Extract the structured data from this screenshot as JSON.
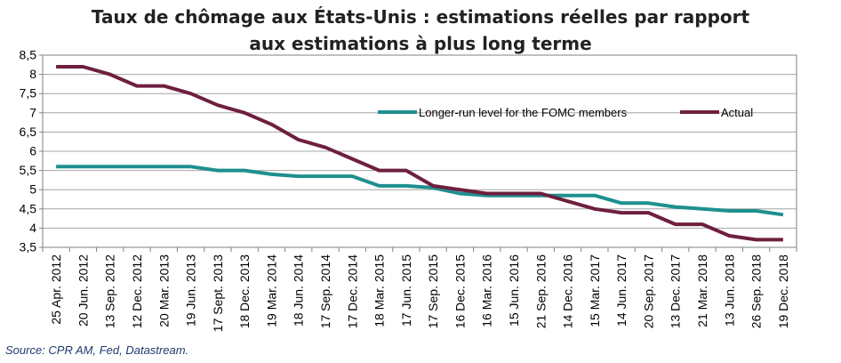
{
  "chart_data": {
    "type": "line",
    "title_lines": [
      "Taux de chômage aux États-Unis : estimations réelles par rapport",
      "aux estimations à plus long terme"
    ],
    "x": [
      "25 Apr. 2012",
      "20 Jun. 2012",
      "13 Sep. 2012",
      "12 Dec. 2012",
      "20 Mar. 2013",
      "19 Jun. 2013",
      "17 Sept. 2013",
      "18 Dec. 2013",
      "19 Mar. 2014",
      "18 Jun. 2014",
      "17 Sep. 2014",
      "17 Dec. 2014",
      "18 Mar. 2015",
      "17 Jun. 2015",
      "17 Sep. 2015",
      "16 Dec. 2015",
      "16 Mar. 2016",
      "15 Jun. 2016",
      "21 Sep. 2016",
      "14 Dec. 2016",
      "15 Mar. 2017",
      "14 Jun. 2017",
      "20 Sep. 2017",
      "13 Dec. 2017",
      "21 Mar. 2018",
      "13 Jun. 2018",
      "26 Sep. 2018",
      "19 Dec. 2018"
    ],
    "series": [
      {
        "name": "Longer-run level for the FOMC members",
        "color": "#1f8f8f",
        "values": [
          5.6,
          5.6,
          5.6,
          5.6,
          5.6,
          5.6,
          5.5,
          5.5,
          5.4,
          5.35,
          5.35,
          5.35,
          5.1,
          5.1,
          5.05,
          4.9,
          4.85,
          4.85,
          4.85,
          4.85,
          4.85,
          4.65,
          4.65,
          4.55,
          4.5,
          4.45,
          4.45,
          4.35
        ]
      },
      {
        "name": "Actual",
        "color": "#6e1f3f",
        "values": [
          8.2,
          8.2,
          8.0,
          7.7,
          7.7,
          7.5,
          7.2,
          7.0,
          6.7,
          6.3,
          6.1,
          5.8,
          5.5,
          5.5,
          5.1,
          5.0,
          4.9,
          4.9,
          4.9,
          4.7,
          4.5,
          4.4,
          4.4,
          4.1,
          4.1,
          3.8,
          3.7,
          3.7
        ]
      }
    ],
    "ylim": [
      3.5,
      8.5
    ],
    "yticks": [
      "3,5",
      "4",
      "4,5",
      "5",
      "5,5",
      "6",
      "6,5",
      "7",
      "7,5",
      "8",
      "8,5"
    ],
    "grid": true,
    "legend": "top-right, inside plot"
  },
  "source": "Source: CPR AM, Fed, Datastream."
}
